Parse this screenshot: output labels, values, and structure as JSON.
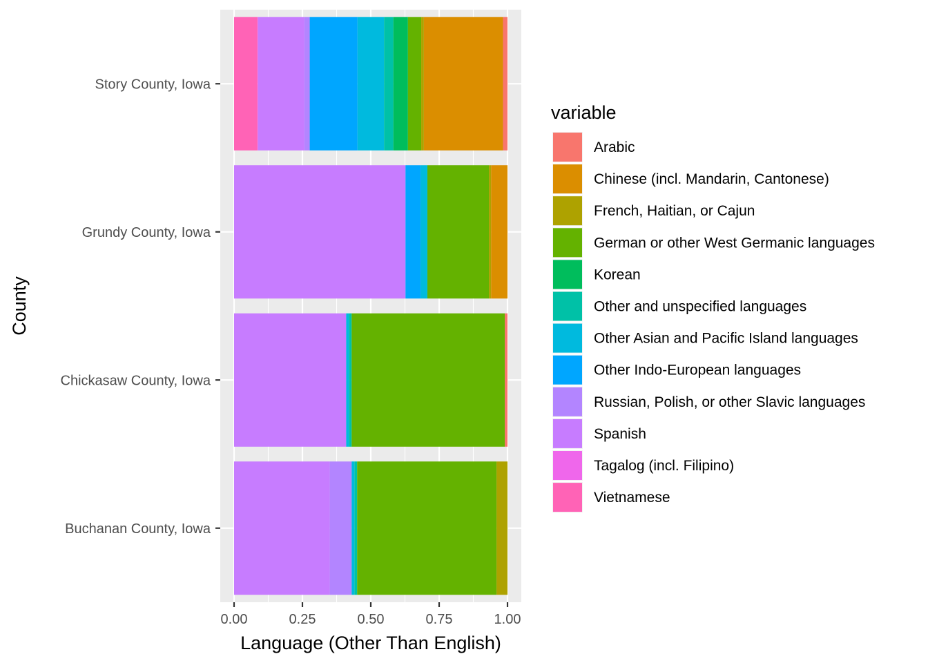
{
  "chart_data": {
    "type": "bar",
    "orientation": "horizontal",
    "stacked": "fill",
    "title": "",
    "xlabel": "Language (Other Than English)",
    "ylabel": "County",
    "xlim": [
      0,
      1
    ],
    "xticks": [
      "0.00",
      "0.25",
      "0.50",
      "0.75",
      "1.00"
    ],
    "grid": true,
    "legend_title": "variable",
    "legend_position": "right",
    "categories": [
      "Story County, Iowa",
      "Grundy County, Iowa",
      "Chickasaw County, Iowa",
      "Buchanan County, Iowa"
    ],
    "stack_order": [
      "Vietnamese",
      "Tagalog (incl. Filipino)",
      "Spanish",
      "Russian, Polish, or other Slavic languages",
      "Other Indo-European languages",
      "Other Asian and Pacific Island languages",
      "Other and unspecified languages",
      "Korean",
      "German or other West Germanic languages",
      "French, Haitian, or Cajun",
      "Chinese (incl. Mandarin, Cantonese)",
      "Arabic"
    ],
    "series": [
      {
        "name": "Arabic",
        "color": "#F8766D",
        "values": [
          0.017,
          0.0,
          0.01,
          0.0
        ]
      },
      {
        "name": "Chinese (incl. Mandarin, Cantonese)",
        "color": "#DB8E00",
        "values": [
          0.298,
          0.06,
          0.0,
          0.0
        ]
      },
      {
        "name": "French, Haitian, or Cajun",
        "color": "#AEA200",
        "values": [
          0.01,
          0.008,
          0.0,
          0.04
        ]
      },
      {
        "name": "German or other West Germanic languages",
        "color": "#64B200",
        "values": [
          0.05,
          0.225,
          0.56,
          0.51
        ]
      },
      {
        "name": "Korean",
        "color": "#00BD5C",
        "values": [
          0.055,
          0.0,
          0.0,
          0.0
        ]
      },
      {
        "name": "Other and unspecified languages",
        "color": "#00C1A7",
        "values": [
          0.035,
          0.0,
          0.01,
          0.01
        ]
      },
      {
        "name": "Other Asian and Pacific Island languages",
        "color": "#00BADE",
        "values": [
          0.1,
          0.025,
          0.01,
          0.01
        ]
      },
      {
        "name": "Other Indo-European languages",
        "color": "#00A6FF",
        "values": [
          0.18,
          0.055,
          0.0,
          0.0
        ]
      },
      {
        "name": "Russian, Polish, or other Slavic languages",
        "color": "#B385FF",
        "values": [
          0.02,
          0.0,
          0.0,
          0.08
        ]
      },
      {
        "name": "Spanish",
        "color": "#C77CFF",
        "values": [
          0.175,
          0.627,
          0.41,
          0.35
        ]
      },
      {
        "name": "Tagalog (incl. Filipino)",
        "color": "#EF67EB",
        "values": [
          0.002,
          0.0,
          0.0,
          0.0
        ]
      },
      {
        "name": "Vietnamese",
        "color": "#FF63B6",
        "values": [
          0.088,
          0.0,
          0.0,
          0.0
        ]
      }
    ]
  }
}
